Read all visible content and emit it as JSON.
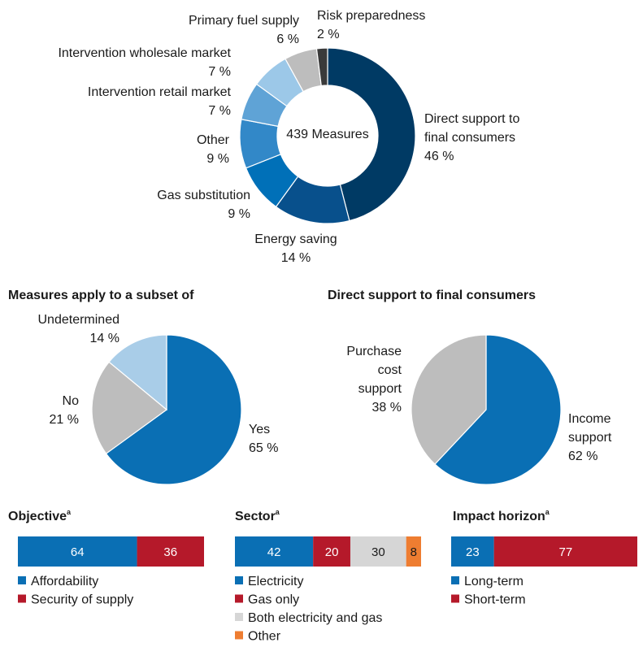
{
  "chart_data": [
    {
      "type": "pie",
      "variant": "donut",
      "center_label": "439 Measures",
      "slices": [
        {
          "label": "Direct support to final consumers",
          "label_lines": [
            "Direct support to",
            "final consumers"
          ],
          "value_label": "46 %",
          "value": 46,
          "color": "#003a64"
        },
        {
          "label": "Energy saving",
          "label_lines": [
            "Energy saving"
          ],
          "value_label": "14 %",
          "value": 14,
          "color": "#08508c"
        },
        {
          "label": "Gas substitution",
          "label_lines": [
            "Gas substitution"
          ],
          "value_label": "9 %",
          "value": 9,
          "color": "#0070b8"
        },
        {
          "label": "Other",
          "label_lines": [
            "Other"
          ],
          "value_label": "9 %",
          "value": 9,
          "color": "#3288c8"
        },
        {
          "label": "Intervention retail market",
          "label_lines": [
            "Intervention retail market"
          ],
          "value_label": "7 %",
          "value": 7,
          "color": "#5fa3d6"
        },
        {
          "label": "Intervention wholesale market",
          "label_lines": [
            "Intervention wholesale market"
          ],
          "value_label": "7 %",
          "value": 7,
          "color": "#9cc8e8"
        },
        {
          "label": "Primary fuel supply",
          "label_lines": [
            "Primary fuel supply"
          ],
          "value_label": "6 %",
          "value": 6,
          "color": "#bdbdbd"
        },
        {
          "label": "Risk preparedness",
          "label_lines": [
            "Risk preparedness"
          ],
          "value_label": "2 %",
          "value": 2,
          "color": "#3a3a3a"
        }
      ]
    },
    {
      "type": "pie",
      "title": "Measures apply to a subset of",
      "slices": [
        {
          "label": "Yes",
          "label_lines": [
            "Yes"
          ],
          "value_label": "65 %",
          "value": 65,
          "color": "#0a6fb4"
        },
        {
          "label": "No",
          "label_lines": [
            "No"
          ],
          "value_label": "21 %",
          "value": 21,
          "color": "#bdbdbd"
        },
        {
          "label": "Undetermined",
          "label_lines": [
            "Undetermined"
          ],
          "value_label": "14 %",
          "value": 14,
          "color": "#a9cde8"
        }
      ]
    },
    {
      "type": "pie",
      "title": "Direct support to final consumers",
      "slices": [
        {
          "label": "Income support",
          "label_lines": [
            "Income",
            "support"
          ],
          "value_label": "62 %",
          "value": 62,
          "color": "#0a6fb4"
        },
        {
          "label": "Purchase cost support",
          "label_lines": [
            "Purchase",
            "cost",
            "support"
          ],
          "value_label": "38 %",
          "value": 38,
          "color": "#bdbdbd"
        }
      ]
    },
    {
      "type": "bar",
      "stacked": true,
      "orientation": "horizontal",
      "title": "Objective",
      "title_superscript": "a",
      "series": [
        {
          "name": "Affordability",
          "value": 64,
          "color": "#0a6fb4"
        },
        {
          "name": "Security of supply",
          "value": 36,
          "color": "#b5192a"
        }
      ]
    },
    {
      "type": "bar",
      "stacked": true,
      "orientation": "horizontal",
      "title": "Sector",
      "title_superscript": "a",
      "series": [
        {
          "name": "Electricity",
          "value": 42,
          "color": "#0a6fb4"
        },
        {
          "name": "Gas only",
          "value": 20,
          "color": "#b5192a"
        },
        {
          "name": "Both electricity and gas",
          "value": 30,
          "color": "#d6d6d6"
        },
        {
          "name": "Other",
          "value": 8,
          "color": "#ee7d31"
        }
      ]
    },
    {
      "type": "bar",
      "stacked": true,
      "orientation": "horizontal",
      "title": "Impact horizon",
      "title_superscript": "a",
      "series": [
        {
          "name": "Long-term",
          "value": 23,
          "color": "#0a6fb4"
        },
        {
          "name": "Short-term",
          "value": 77,
          "color": "#b5192a"
        }
      ]
    }
  ]
}
